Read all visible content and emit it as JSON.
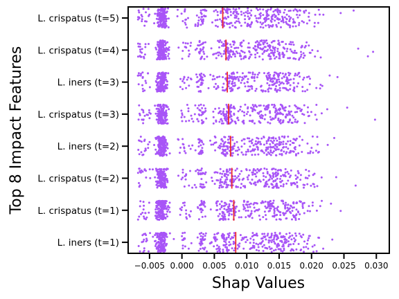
{
  "chart_data": {
    "type": "scatter",
    "title": "",
    "xlabel": "Shap Values",
    "ylabel": "Top 8 Impact Features",
    "xlim": [
      -0.0083,
      0.032
    ],
    "xticks": [
      -0.005,
      0.0,
      0.005,
      0.01,
      0.015,
      0.02,
      0.025,
      0.03
    ],
    "xtick_labels": [
      "−0.005",
      "0.000",
      "0.005",
      "0.010",
      "0.015",
      "0.020",
      "0.025",
      "0.030"
    ],
    "point_color": "#a855f7",
    "median_line_color": "#ef2b2b",
    "grid": false,
    "categories": [
      {
        "label": "L. crispatus (t=5)",
        "median": 0.0063,
        "xmax": 0.0265,
        "outliers": [
          0.0245,
          0.0265
        ]
      },
      {
        "label": "L. crispatus (t=4)",
        "median": 0.0068,
        "xmax": 0.0295,
        "outliers": [
          0.0272,
          0.0287,
          0.0295
        ]
      },
      {
        "label": "L. iners (t=3)",
        "median": 0.007,
        "xmax": 0.024,
        "outliers": [
          0.0228,
          0.024
        ]
      },
      {
        "label": "L. crispatus (t=3)",
        "median": 0.0072,
        "xmax": 0.0298,
        "outliers": [
          0.0255,
          0.0298
        ]
      },
      {
        "label": "L. iners (t=2)",
        "median": 0.0075,
        "xmax": 0.0235,
        "outliers": [
          0.0225,
          0.0235
        ]
      },
      {
        "label": "L. crispatus (t=2)",
        "median": 0.0077,
        "xmax": 0.0268,
        "outliers": [
          0.0238,
          0.0268
        ]
      },
      {
        "label": "L. crispatus (t=1)",
        "median": 0.008,
        "xmax": 0.0245,
        "outliers": [
          0.023,
          0.0245
        ]
      },
      {
        "label": "L. iners (t=1)",
        "median": 0.0083,
        "xmax": 0.0232,
        "outliers": [
          0.0218,
          0.0232
        ]
      }
    ]
  }
}
